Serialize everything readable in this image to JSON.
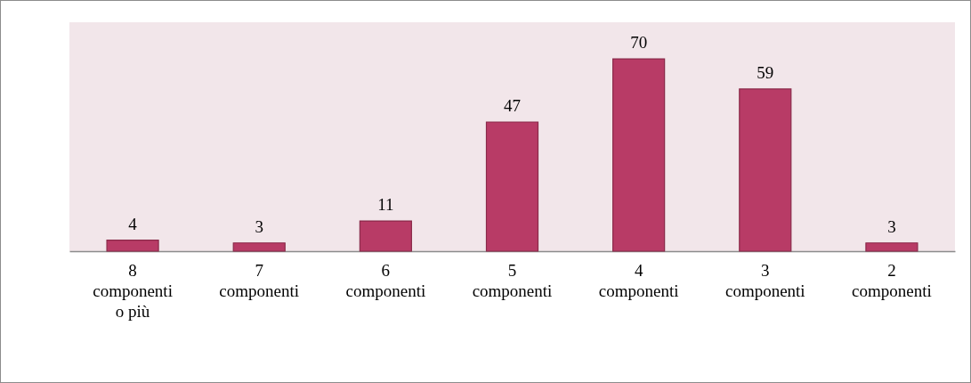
{
  "chart_data": {
    "type": "bar",
    "categories": [
      "8 componenti o più",
      "7 componenti",
      "6 componenti",
      "5 componenti",
      "4 componenti",
      "3 componenti",
      "2 componenti"
    ],
    "values": [
      4,
      3,
      11,
      47,
      70,
      59,
      3
    ],
    "color": "#b83b66",
    "data_labels": true
  }
}
